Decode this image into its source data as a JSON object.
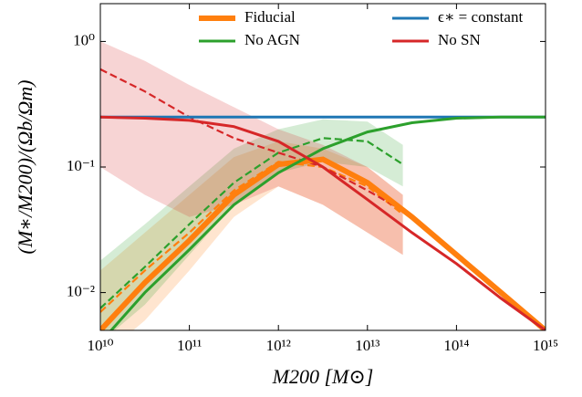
{
  "chart_data": {
    "type": "line",
    "xlabel": "M200 [M⊙]",
    "ylabel": "(M∗/M200)/(Ωb/Ωm)",
    "xlog": true,
    "ylog": true,
    "xlim": [
      10000000000.0,
      1000000000000000.0
    ],
    "ylim": [
      0.005,
      2
    ],
    "xticks": [
      {
        "value": 10000000000.0,
        "label": "10¹⁰"
      },
      {
        "value": 100000000000.0,
        "label": "10¹¹"
      },
      {
        "value": 1000000000000.0,
        "label": "10¹²"
      },
      {
        "value": 10000000000000.0,
        "label": "10¹³"
      },
      {
        "value": 100000000000000.0,
        "label": "10¹⁴"
      },
      {
        "value": 1000000000000000.0,
        "label": "10¹⁵"
      }
    ],
    "yticks": [
      {
        "value": 1,
        "label": "10⁰"
      },
      {
        "value": 0.1,
        "label": "10⁻¹"
      },
      {
        "value": 0.01,
        "label": "10⁻²"
      }
    ],
    "legend": "upper center",
    "x": [
      10000000000.0,
      31600000000.0,
      100000000000.0,
      316000000000.0,
      1000000000000.0,
      3160000000000.0,
      10000000000000.0,
      31600000000000.0,
      100000000000000.0,
      316000000000000.0,
      1000000000000000.0
    ],
    "series": [
      {
        "name": "Fiducial",
        "color": "#ff7f0e",
        "width": 6,
        "values": [
          0.005,
          0.012,
          0.026,
          0.06,
          0.105,
          0.115,
          0.075,
          0.04,
          0.02,
          0.01,
          0.005
        ]
      },
      {
        "name": "ϵ∗ = constant",
        "color": "#1f77b4",
        "width": 3,
        "values": [
          0.25,
          0.25,
          0.25,
          0.25,
          0.25,
          0.25,
          0.25,
          0.25,
          0.25,
          0.25,
          0.25
        ]
      },
      {
        "name": "No AGN",
        "color": "#2ca02c",
        "width": 3,
        "values": [
          0.004,
          0.01,
          0.022,
          0.05,
          0.09,
          0.14,
          0.19,
          0.225,
          0.245,
          0.25,
          0.25
        ]
      },
      {
        "name": "No SN",
        "color": "#d62728",
        "width": 3,
        "values": [
          0.25,
          0.245,
          0.235,
          0.21,
          0.16,
          0.1,
          0.055,
          0.03,
          0.017,
          0.009,
          0.005
        ]
      }
    ],
    "x_sim": [
      10000000000.0,
      31600000000.0,
      100000000000.0,
      316000000000.0,
      1000000000000.0,
      3160000000000.0,
      10000000000000.0,
      25000000000000.0
    ],
    "dashed_series": [
      {
        "color": "#ff7f0e",
        "values": [
          0.007,
          0.015,
          0.03,
          0.065,
          0.11,
          0.1,
          0.07,
          0.042
        ]
      },
      {
        "color": "#2ca02c",
        "values": [
          0.0075,
          0.016,
          0.035,
          0.075,
          0.13,
          0.17,
          0.16,
          0.105
        ]
      },
      {
        "color": "#d62728",
        "values": [
          0.6,
          0.4,
          0.25,
          0.17,
          0.13,
          0.1,
          0.065,
          0.045
        ]
      }
    ],
    "bands": [
      {
        "color": "#ff7f0e",
        "low": [
          0.003,
          0.006,
          0.015,
          0.04,
          0.07,
          0.05,
          0.03,
          0.02
        ],
        "high": [
          0.015,
          0.03,
          0.06,
          0.12,
          0.16,
          0.14,
          0.1,
          0.06
        ]
      },
      {
        "color": "#2ca02c",
        "low": [
          0.004,
          0.008,
          0.02,
          0.05,
          0.09,
          0.11,
          0.1,
          0.07
        ],
        "high": [
          0.018,
          0.035,
          0.07,
          0.14,
          0.2,
          0.24,
          0.23,
          0.15
        ]
      },
      {
        "color": "#d62728",
        "low": [
          0.1,
          0.06,
          0.04,
          0.05,
          0.07,
          0.05,
          0.03,
          0.02
        ],
        "high": [
          1.0,
          0.7,
          0.45,
          0.3,
          0.2,
          0.15,
          0.1,
          0.06
        ]
      }
    ]
  }
}
